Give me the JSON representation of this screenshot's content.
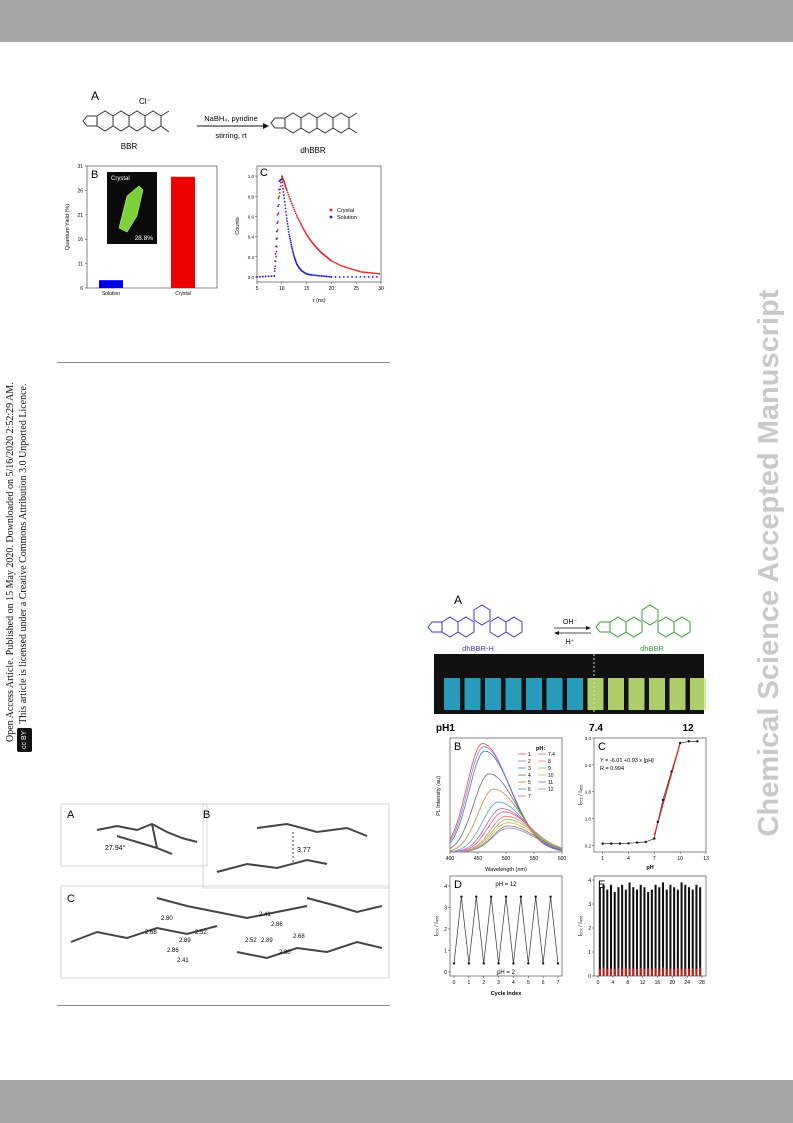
{
  "side_notice": {
    "line1": "Open Access Article. Published on 15 May 2020. Downloaded on 5/16/2020 2:52:29 AM.",
    "line2": "This article is licensed under a Creative Commons Attribution 3.0 Unported Licence.",
    "badge": "cc BY"
  },
  "watermark": "Chemical Science Accepted Manuscript",
  "figure1": {
    "panelA": {
      "letter": "A",
      "reactant": "BBR",
      "product": "dhBBR",
      "counterion": "Cl⁻",
      "reagents": "NaBH₄, pyridine",
      "conditions": "stirring, rt"
    },
    "panelB": {
      "letter": "B",
      "ylabel": "Quantum Yield (%)",
      "inset_label": "Crystal",
      "inset_value": "28.8%"
    },
    "panelC": {
      "letter": "C",
      "ylabel": "Counts",
      "xlabel": "τ (ns)",
      "legend_crystal": "Crystal",
      "legend_solution": "Solution"
    }
  },
  "figure2": {
    "panelA_letter": "A",
    "angle": "27.94°",
    "panelB_letter": "B",
    "distance": "3.77",
    "panelC_letter": "C",
    "contacts_left": [
      "2.80",
      "2.68",
      "2.89",
      "2.52",
      "2.86",
      "2.41"
    ],
    "contacts_right": [
      "2.41",
      "2.86",
      "2.52",
      "2.89",
      "2.68",
      "2.80"
    ]
  },
  "figure3": {
    "panelA": {
      "letter": "A",
      "left_label": "dhBBR-H",
      "right_label": "dhBBR",
      "arrow_top": "OH⁻",
      "arrow_bottom": "H⁺",
      "ph_left": "pH1",
      "ph_mid": "7.4",
      "ph_right": "12"
    },
    "panelB": {
      "letter": "B",
      "ylabel": "PL Intensity (au)",
      "xlabel": "Wavelength (nm)",
      "legend_title": "pH:"
    },
    "panelC": {
      "letter": "C",
      "xlabel": "pH",
      "ylabel": "I₅₀₂ / I₄₅₆",
      "eq": "Y = -6.01 +0.93 x [pH]",
      "r": "R = 0.994"
    },
    "panelD": {
      "letter": "D",
      "xlabel": "Cycle Index",
      "ylabel": "I₅₀₂ / I₄₅₆",
      "top_note": "pH = 12",
      "bottom_note": "pH = 2"
    },
    "panelE": {
      "letter": "E",
      "ylabel": "I₅₀₂ / I₄₅₆"
    }
  },
  "chart_data": [
    {
      "type": "bar",
      "categories": [
        "Solution",
        "Crystal"
      ],
      "values": [
        7.6,
        28.8
      ],
      "ylabel": "Quantum Yield (%)",
      "ylim": [
        6,
        31
      ],
      "yticks": [
        6,
        11,
        16,
        21,
        26,
        31
      ],
      "colors": [
        "#0000ee",
        "#ee0000"
      ]
    },
    {
      "type": "scatter",
      "xlabel": "τ (ns)",
      "ylabel": "Counts",
      "xlim": [
        5,
        30
      ],
      "ylim": [
        -0.05,
        1.1
      ],
      "xticks": [
        5,
        10,
        15,
        20,
        25,
        30
      ],
      "yticks": [
        0.0,
        0.2,
        0.4,
        0.6,
        0.8,
        1.0
      ],
      "series": [
        {
          "name": "Crystal",
          "color": "#e02020",
          "x": [
            5,
            8.5,
            9,
            9.5,
            10,
            10.5,
            11,
            12,
            13,
            14,
            15,
            16,
            17,
            18,
            19,
            20,
            22,
            24,
            26,
            28,
            30
          ],
          "y": [
            0.0,
            0.01,
            0.3,
            0.8,
            1.0,
            0.94,
            0.86,
            0.73,
            0.61,
            0.51,
            0.42,
            0.35,
            0.29,
            0.24,
            0.2,
            0.16,
            0.11,
            0.08,
            0.05,
            0.04,
            0.03
          ]
        },
        {
          "name": "Solution",
          "color": "#2020e0",
          "x": [
            5,
            8.5,
            9,
            9.5,
            10,
            10.5,
            11,
            11.5,
            12,
            12.5,
            13,
            13.5,
            14,
            15,
            16,
            18,
            20,
            25,
            30
          ],
          "y": [
            0.0,
            0.01,
            0.45,
            0.95,
            0.97,
            0.78,
            0.58,
            0.42,
            0.3,
            0.2,
            0.13,
            0.09,
            0.06,
            0.03,
            0.02,
            0.01,
            0.0,
            0.0,
            0.0
          ]
        }
      ]
    },
    {
      "type": "line",
      "xlabel": "Wavelength (nm)",
      "ylabel": "PL Intensity (au)",
      "xlim": [
        400,
        600
      ],
      "xticks": [
        400,
        450,
        500,
        550,
        600
      ],
      "legend_title": "pH:",
      "series": [
        {
          "name": "1",
          "color": "#e8463a",
          "peak_x": 458,
          "peak_y": 1.0
        },
        {
          "name": "2",
          "color": "#9a7be0",
          "peak_x": 460,
          "peak_y": 0.97
        },
        {
          "name": "3",
          "color": "#3a7ad0",
          "peak_x": 462,
          "peak_y": 0.93
        },
        {
          "name": "4",
          "color": "#6a6a6a",
          "peak_x": 470,
          "peak_y": 0.72
        },
        {
          "name": "5",
          "color": "#b98e3a",
          "peak_x": 478,
          "peak_y": 0.58
        },
        {
          "name": "6",
          "color": "#4aa0c8",
          "peak_x": 486,
          "peak_y": 0.46
        },
        {
          "name": "7",
          "color": "#c060b0",
          "peak_x": 492,
          "peak_y": 0.4
        },
        {
          "name": "7.4",
          "color": "#e05a8a",
          "peak_x": 496,
          "peak_y": 0.37
        },
        {
          "name": "8",
          "color": "#e88070",
          "peak_x": 500,
          "peak_y": 0.33
        },
        {
          "name": "9",
          "color": "#70c070",
          "peak_x": 502,
          "peak_y": 0.3
        },
        {
          "name": "10",
          "color": "#d0c040",
          "peak_x": 503,
          "peak_y": 0.27
        },
        {
          "name": "11",
          "color": "#a07060",
          "peak_x": 504,
          "peak_y": 0.24
        },
        {
          "name": "12",
          "color": "#8888dd",
          "peak_x": 504,
          "peak_y": 0.22
        }
      ]
    },
    {
      "type": "line",
      "xlabel": "pH",
      "ylabel": "I₅₀₂ / I₄₅₆",
      "xlim": [
        0,
        13
      ],
      "ylim": [
        0,
        3.4
      ],
      "xticks": [
        1,
        4,
        7,
        10,
        13
      ],
      "yticks": [
        0.2,
        1.0,
        1.8,
        2.6,
        3.4
      ],
      "x": [
        1,
        2,
        3,
        4,
        5,
        6,
        7,
        7.4,
        8,
        9,
        10,
        11,
        12
      ],
      "y": [
        0.25,
        0.25,
        0.25,
        0.26,
        0.28,
        0.3,
        0.4,
        0.9,
        1.55,
        2.4,
        3.25,
        3.3,
        3.3
      ]
    },
    {
      "type": "line",
      "xlabel": "Cycle Index",
      "ylabel": "I₅₀₂ / I₄₅₆",
      "xlim": [
        0,
        7
      ],
      "ylim": [
        0,
        4
      ],
      "xticks": [
        0,
        1,
        2,
        3,
        4,
        5,
        6,
        7
      ],
      "yticks": [
        0,
        1,
        2,
        3,
        4
      ],
      "x": [
        0,
        0.5,
        1,
        1.5,
        2,
        2.5,
        3,
        3.5,
        4,
        4.5,
        5,
        5.5,
        6,
        6.5,
        7
      ],
      "y": [
        0.4,
        3.5,
        0.4,
        3.5,
        0.4,
        3.5,
        0.4,
        3.5,
        0.4,
        3.5,
        0.4,
        3.5,
        0.4,
        3.5,
        0.4
      ]
    },
    {
      "type": "bar",
      "xlim": [
        0,
        28
      ],
      "ylim": [
        0,
        4
      ],
      "xticks": [
        0,
        4,
        8,
        12,
        16,
        20,
        24,
        28
      ],
      "yticks": [
        0,
        1,
        2,
        3,
        4
      ],
      "series": [
        {
          "color": "#111111",
          "values": [
            3.7,
            3.8,
            3.6,
            3.8,
            3.5,
            3.7,
            3.8,
            3.6,
            3.9,
            3.7,
            3.6,
            3.8,
            3.7,
            3.5,
            3.6,
            3.8,
            3.7,
            3.9,
            3.6,
            3.8,
            3.7,
            3.6,
            3.9,
            3.8,
            3.7,
            3.6,
            3.8,
            3.7
          ]
        },
        {
          "color": "#c0201a",
          "values": [
            0.3,
            0.35,
            0.3,
            0.32,
            0.3,
            0.33,
            0.3,
            0.35,
            0.3,
            0.32,
            0.3,
            0.34,
            0.3,
            0.32,
            0.3,
            0.33,
            0.3,
            0.35,
            0.3,
            0.32,
            0.3,
            0.34,
            0.3,
            0.32,
            0.3,
            0.33,
            0.3,
            0.35
          ]
        }
      ]
    }
  ]
}
